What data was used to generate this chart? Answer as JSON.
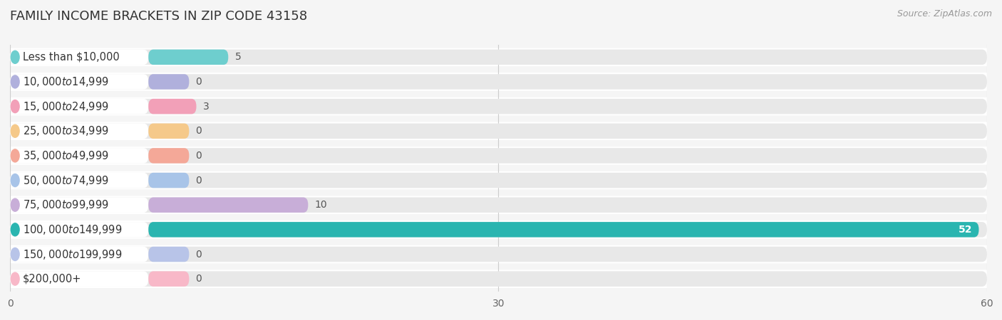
{
  "title": "FAMILY INCOME BRACKETS IN ZIP CODE 43158",
  "source": "Source: ZipAtlas.com",
  "categories": [
    "Less than $10,000",
    "$10,000 to $14,999",
    "$15,000 to $24,999",
    "$25,000 to $34,999",
    "$35,000 to $49,999",
    "$50,000 to $74,999",
    "$75,000 to $99,999",
    "$100,000 to $149,999",
    "$150,000 to $199,999",
    "$200,000+"
  ],
  "values": [
    5,
    0,
    3,
    0,
    0,
    0,
    10,
    52,
    0,
    0
  ],
  "bar_colors": [
    "#6ecece",
    "#b0b0dc",
    "#f2a0b8",
    "#f5c98a",
    "#f4a898",
    "#a8c4e8",
    "#c8aed8",
    "#2ab5b0",
    "#b8c4e8",
    "#f8b8c8"
  ],
  "bar_label_colors": [
    "#555555",
    "#555555",
    "#555555",
    "#555555",
    "#555555",
    "#555555",
    "#555555",
    "#ffffff",
    "#555555",
    "#555555"
  ],
  "xlim": [
    0,
    60
  ],
  "xticks": [
    0,
    30,
    60
  ],
  "background_color": "#f5f5f5",
  "bar_bg_color": "#e8e8e8",
  "row_bg_color": "#f0f0f0",
  "title_fontsize": 13,
  "source_fontsize": 9,
  "label_fontsize": 10.5,
  "value_fontsize": 10
}
